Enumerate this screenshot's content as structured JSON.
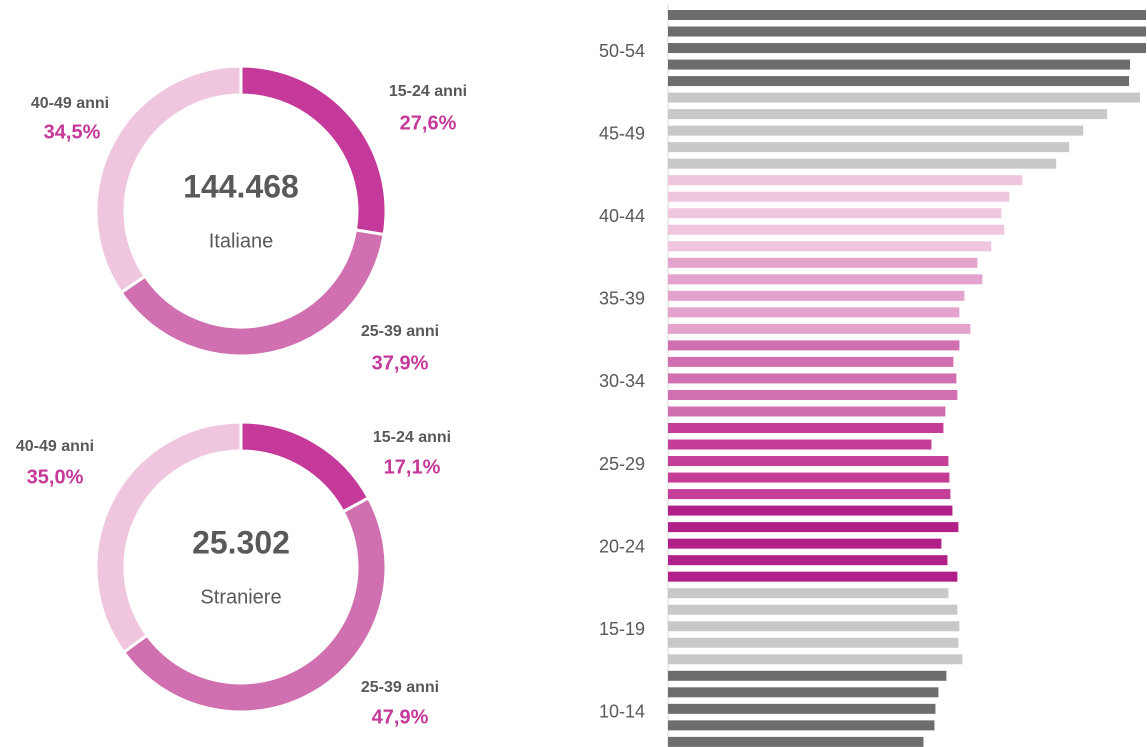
{
  "chart_data": [
    {
      "type": "donut",
      "center_value": "144.468",
      "center_label": "Italiane",
      "categories": [
        "15-24 anni",
        "25-39 anni",
        "40-49 anni"
      ],
      "values": [
        27.6,
        37.9,
        34.5
      ],
      "value_labels": [
        "27,6%",
        "37,9%",
        "34,5%"
      ],
      "colors": [
        "#c4399a",
        "#d070b0",
        "#f0c6df"
      ]
    },
    {
      "type": "donut",
      "center_value": "25.302",
      "center_label": "Straniere",
      "categories": [
        "15-24 anni",
        "25-39 anni",
        "40-49 anni"
      ],
      "values": [
        17.1,
        47.9,
        35.0
      ],
      "value_labels": [
        "17,1%",
        "47,9%",
        "35,0%"
      ],
      "colors": [
        "#c4399a",
        "#d070b0",
        "#f0c6df"
      ]
    },
    {
      "type": "hbar",
      "categories": [
        null,
        null,
        "50-54",
        null,
        null,
        null,
        null,
        "45-49",
        null,
        null,
        null,
        null,
        "40-44",
        null,
        null,
        null,
        null,
        "35-39",
        null,
        null,
        null,
        null,
        "30-34",
        null,
        null,
        null,
        null,
        "25-29",
        null,
        null,
        null,
        null,
        "20-24",
        null,
        null,
        null,
        null,
        "15-19",
        null,
        null,
        null,
        null,
        "10-14",
        null,
        null
      ],
      "values": [
        479,
        479,
        479,
        463,
        462,
        473,
        440,
        416,
        402,
        389,
        355,
        342,
        334,
        337,
        324,
        310,
        315,
        297,
        292,
        303,
        292,
        286,
        289,
        290,
        278,
        276,
        264,
        281,
        282,
        283,
        285,
        291,
        274,
        280,
        290,
        281,
        290,
        292,
        291,
        295,
        279,
        271,
        268,
        267,
        256
      ],
      "colors": [
        "#6d6d6d",
        "#6d6d6d",
        "#6d6d6d",
        "#6d6d6d",
        "#6d6d6d",
        "#c8c8c8",
        "#c8c8c8",
        "#c8c8c8",
        "#c8c8c8",
        "#c8c8c8",
        "#f0c6df",
        "#f0c6df",
        "#f0c6df",
        "#f0c6df",
        "#f0c6df",
        "#e3a3cc",
        "#e3a3cc",
        "#e3a3cc",
        "#e3a3cc",
        "#e3a3cc",
        "#d070b0",
        "#d070b0",
        "#d070b0",
        "#d070b0",
        "#d070b0",
        "#c43e98",
        "#c43e98",
        "#c43e98",
        "#c43e98",
        "#c43e98",
        "#b11f88",
        "#b11f88",
        "#b11f88",
        "#b11f88",
        "#b11f88",
        "#c8c8c8",
        "#c8c8c8",
        "#c8c8c8",
        "#c8c8c8",
        "#c8c8c8",
        "#6d6d6d",
        "#6d6d6d",
        "#6d6d6d",
        "#6d6d6d",
        "#6d6d6d"
      ],
      "xlim": [
        0,
        480
      ]
    }
  ]
}
